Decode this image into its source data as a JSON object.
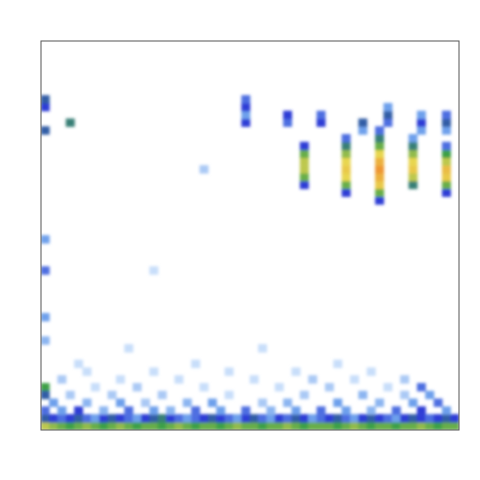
{
  "chart_data": {
    "type": "heatmap",
    "tick_labels": false,
    "xlim": [
      0,
      100
    ],
    "ylim": [
      0,
      100
    ],
    "zlim": [
      0,
      1
    ],
    "cell_width": 2,
    "cell_height": 2,
    "cells": [
      [
        62,
        62,
        0.4
      ],
      [
        62,
        64,
        0.6
      ],
      [
        62,
        66,
        0.7
      ],
      [
        62,
        68,
        0.7
      ],
      [
        62,
        70,
        0.6
      ],
      [
        62,
        72,
        0.4
      ],
      [
        72,
        60,
        0.4
      ],
      [
        72,
        62,
        0.6
      ],
      [
        72,
        64,
        0.75
      ],
      [
        72,
        66,
        0.8
      ],
      [
        72,
        68,
        0.75
      ],
      [
        72,
        70,
        0.65
      ],
      [
        72,
        72,
        0.5
      ],
      [
        72,
        74,
        0.35
      ],
      [
        80,
        58,
        0.4
      ],
      [
        80,
        60,
        0.6
      ],
      [
        80,
        62,
        0.8
      ],
      [
        80,
        64,
        0.9
      ],
      [
        80,
        66,
        1.0
      ],
      [
        80,
        68,
        0.9
      ],
      [
        80,
        70,
        0.75
      ],
      [
        80,
        72,
        0.6
      ],
      [
        80,
        74,
        0.5
      ],
      [
        80,
        76,
        0.35
      ],
      [
        88,
        62,
        0.5
      ],
      [
        88,
        64,
        0.7
      ],
      [
        88,
        66,
        0.8
      ],
      [
        88,
        68,
        0.75
      ],
      [
        88,
        70,
        0.65
      ],
      [
        88,
        72,
        0.5
      ],
      [
        88,
        74,
        0.3
      ],
      [
        96,
        60,
        0.4
      ],
      [
        96,
        62,
        0.6
      ],
      [
        96,
        64,
        0.8
      ],
      [
        96,
        66,
        0.85
      ],
      [
        96,
        68,
        0.7
      ],
      [
        96,
        70,
        0.55
      ],
      [
        96,
        72,
        0.35
      ],
      [
        48,
        78,
        0.4
      ],
      [
        48,
        80,
        0.3
      ],
      [
        48,
        82,
        0.4
      ],
      [
        48,
        84,
        0.35
      ],
      [
        58,
        78,
        0.35
      ],
      [
        58,
        80,
        0.4
      ],
      [
        66,
        78,
        0.4
      ],
      [
        66,
        80,
        0.35
      ],
      [
        76,
        76,
        0.3
      ],
      [
        76,
        78,
        0.45
      ],
      [
        82,
        78,
        0.35
      ],
      [
        82,
        80,
        0.45
      ],
      [
        82,
        82,
        0.3
      ],
      [
        90,
        76,
        0.3
      ],
      [
        90,
        78,
        0.4
      ],
      [
        90,
        80,
        0.3
      ],
      [
        96,
        76,
        0.3
      ],
      [
        96,
        78,
        0.45
      ],
      [
        96,
        80,
        0.35
      ],
      [
        0,
        82,
        0.4
      ],
      [
        0,
        84,
        0.45
      ],
      [
        0,
        76,
        0.45
      ],
      [
        0,
        48,
        0.3
      ],
      [
        0,
        40,
        0.35
      ],
      [
        0,
        28,
        0.3
      ],
      [
        0,
        22,
        0.25
      ],
      [
        0,
        10,
        0.55
      ],
      [
        6,
        78,
        0.5
      ],
      [
        38,
        66,
        0.2
      ],
      [
        26,
        40,
        0.15
      ],
      [
        0,
        0,
        0.7
      ],
      [
        2,
        0,
        0.65
      ],
      [
        4,
        0,
        0.6
      ],
      [
        6,
        0,
        0.55
      ],
      [
        8,
        0,
        0.6
      ],
      [
        10,
        0,
        0.65
      ],
      [
        12,
        0,
        0.6
      ],
      [
        14,
        0,
        0.55
      ],
      [
        16,
        0,
        0.6
      ],
      [
        18,
        0,
        0.65
      ],
      [
        20,
        0,
        0.6
      ],
      [
        22,
        0,
        0.55
      ],
      [
        24,
        0,
        0.6
      ],
      [
        26,
        0,
        0.6
      ],
      [
        28,
        0,
        0.55
      ],
      [
        30,
        0,
        0.6
      ],
      [
        32,
        0,
        0.65
      ],
      [
        34,
        0,
        0.6
      ],
      [
        36,
        0,
        0.55
      ],
      [
        38,
        0,
        0.6
      ],
      [
        40,
        0,
        0.6
      ],
      [
        42,
        0,
        0.55
      ],
      [
        44,
        0,
        0.6
      ],
      [
        46,
        0,
        0.65
      ],
      [
        48,
        0,
        0.6
      ],
      [
        50,
        0,
        0.6
      ],
      [
        52,
        0,
        0.55
      ],
      [
        54,
        0,
        0.6
      ],
      [
        56,
        0,
        0.6
      ],
      [
        58,
        0,
        0.65
      ],
      [
        60,
        0,
        0.6
      ],
      [
        62,
        0,
        0.55
      ],
      [
        64,
        0,
        0.6
      ],
      [
        66,
        0,
        0.6
      ],
      [
        68,
        0,
        0.6
      ],
      [
        70,
        0,
        0.55
      ],
      [
        72,
        0,
        0.6
      ],
      [
        74,
        0,
        0.65
      ],
      [
        76,
        0,
        0.6
      ],
      [
        78,
        0,
        0.55
      ],
      [
        80,
        0,
        0.6
      ],
      [
        82,
        0,
        0.6
      ],
      [
        84,
        0,
        0.55
      ],
      [
        86,
        0,
        0.6
      ],
      [
        88,
        0,
        0.6
      ],
      [
        90,
        0,
        0.65
      ],
      [
        92,
        0,
        0.6
      ],
      [
        94,
        0,
        0.55
      ],
      [
        96,
        0,
        0.6
      ],
      [
        98,
        0,
        0.6
      ],
      [
        0,
        2,
        0.45
      ],
      [
        2,
        2,
        0.4
      ],
      [
        4,
        2,
        0.35
      ],
      [
        6,
        2,
        0.4
      ],
      [
        8,
        2,
        0.45
      ],
      [
        10,
        2,
        0.35
      ],
      [
        12,
        2,
        0.3
      ],
      [
        14,
        2,
        0.4
      ],
      [
        16,
        2,
        0.45
      ],
      [
        18,
        2,
        0.4
      ],
      [
        20,
        2,
        0.35
      ],
      [
        22,
        2,
        0.3
      ],
      [
        24,
        2,
        0.4
      ],
      [
        26,
        2,
        0.45
      ],
      [
        28,
        2,
        0.5
      ],
      [
        30,
        2,
        0.4
      ],
      [
        32,
        2,
        0.35
      ],
      [
        34,
        2,
        0.3
      ],
      [
        36,
        2,
        0.35
      ],
      [
        38,
        2,
        0.4
      ],
      [
        40,
        2,
        0.45
      ],
      [
        42,
        2,
        0.4
      ],
      [
        44,
        2,
        0.35
      ],
      [
        46,
        2,
        0.3
      ],
      [
        48,
        2,
        0.4
      ],
      [
        50,
        2,
        0.45
      ],
      [
        52,
        2,
        0.35
      ],
      [
        54,
        2,
        0.3
      ],
      [
        56,
        2,
        0.4
      ],
      [
        58,
        2,
        0.35
      ],
      [
        60,
        2,
        0.45
      ],
      [
        62,
        2,
        0.4
      ],
      [
        64,
        2,
        0.3
      ],
      [
        66,
        2,
        0.35
      ],
      [
        68,
        2,
        0.4
      ],
      [
        70,
        2,
        0.45
      ],
      [
        72,
        2,
        0.35
      ],
      [
        74,
        2,
        0.3
      ],
      [
        76,
        2,
        0.4
      ],
      [
        78,
        2,
        0.45
      ],
      [
        80,
        2,
        0.4
      ],
      [
        82,
        2,
        0.35
      ],
      [
        84,
        2,
        0.3
      ],
      [
        86,
        2,
        0.4
      ],
      [
        88,
        2,
        0.45
      ],
      [
        90,
        2,
        0.4
      ],
      [
        92,
        2,
        0.35
      ],
      [
        94,
        2,
        0.4
      ],
      [
        96,
        2,
        0.45
      ],
      [
        98,
        2,
        0.4
      ],
      [
        0,
        4,
        0.35
      ],
      [
        4,
        4,
        0.3
      ],
      [
        8,
        4,
        0.4
      ],
      [
        14,
        4,
        0.25
      ],
      [
        20,
        4,
        0.35
      ],
      [
        26,
        4,
        0.3
      ],
      [
        30,
        4,
        0.25
      ],
      [
        36,
        4,
        0.35
      ],
      [
        42,
        4,
        0.3
      ],
      [
        48,
        4,
        0.35
      ],
      [
        54,
        4,
        0.25
      ],
      [
        60,
        4,
        0.3
      ],
      [
        66,
        4,
        0.35
      ],
      [
        72,
        4,
        0.3
      ],
      [
        78,
        4,
        0.25
      ],
      [
        84,
        4,
        0.35
      ],
      [
        90,
        4,
        0.4
      ],
      [
        96,
        4,
        0.3
      ],
      [
        2,
        6,
        0.3
      ],
      [
        10,
        6,
        0.25
      ],
      [
        18,
        6,
        0.3
      ],
      [
        24,
        6,
        0.2
      ],
      [
        34,
        6,
        0.25
      ],
      [
        40,
        6,
        0.3
      ],
      [
        52,
        6,
        0.2
      ],
      [
        58,
        6,
        0.25
      ],
      [
        70,
        6,
        0.3
      ],
      [
        80,
        6,
        0.25
      ],
      [
        88,
        6,
        0.3
      ],
      [
        94,
        6,
        0.35
      ],
      [
        0,
        8,
        0.45
      ],
      [
        6,
        8,
        0.2
      ],
      [
        16,
        8,
        0.2
      ],
      [
        28,
        8,
        0.2
      ],
      [
        44,
        8,
        0.15
      ],
      [
        62,
        8,
        0.2
      ],
      [
        76,
        8,
        0.25
      ],
      [
        86,
        8,
        0.2
      ],
      [
        92,
        8,
        0.3
      ],
      [
        12,
        10,
        0.15
      ],
      [
        22,
        10,
        0.2
      ],
      [
        38,
        10,
        0.15
      ],
      [
        56,
        10,
        0.15
      ],
      [
        68,
        10,
        0.2
      ],
      [
        82,
        10,
        0.15
      ],
      [
        90,
        10,
        0.35
      ],
      [
        4,
        12,
        0.2
      ],
      [
        18,
        12,
        0.15
      ],
      [
        32,
        12,
        0.15
      ],
      [
        50,
        12,
        0.15
      ],
      [
        64,
        12,
        0.2
      ],
      [
        74,
        12,
        0.15
      ],
      [
        86,
        12,
        0.2
      ],
      [
        10,
        14,
        0.15
      ],
      [
        26,
        14,
        0.15
      ],
      [
        44,
        14,
        0.15
      ],
      [
        60,
        14,
        0.15
      ],
      [
        78,
        14,
        0.15
      ],
      [
        8,
        16,
        0.15
      ],
      [
        36,
        16,
        0.15
      ],
      [
        70,
        16,
        0.15
      ],
      [
        20,
        20,
        0.15
      ],
      [
        52,
        20,
        0.15
      ]
    ]
  }
}
